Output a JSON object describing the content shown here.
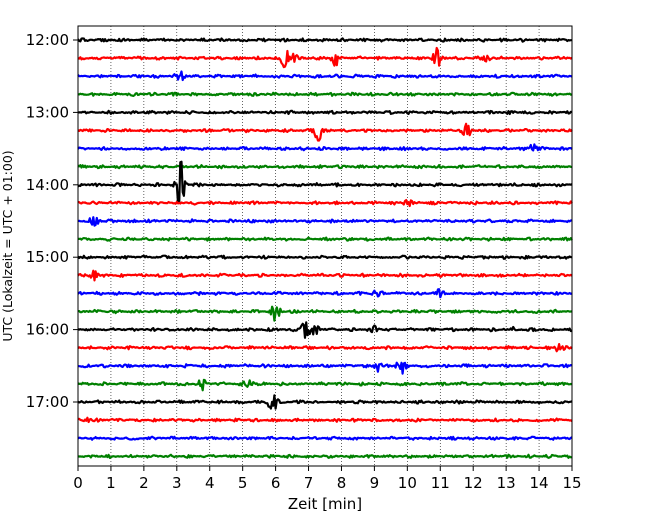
{
  "chart_data": {
    "type": "line",
    "title": "",
    "xlabel": "Zeit  [min]",
    "ylabel": "UTC (Lokalzeit = UTC + 01:00)",
    "xlim": [
      0,
      15
    ],
    "x_ticks": [
      "0",
      "1",
      "2",
      "3",
      "4",
      "5",
      "6",
      "7",
      "8",
      "9",
      "10",
      "11",
      "12",
      "13",
      "14",
      "15"
    ],
    "y_ticks": [
      "12:00",
      "13:00",
      "14:00",
      "15:00",
      "16:00",
      "17:00"
    ],
    "grid_x": true,
    "grid_y": false,
    "line_interval_min": 15,
    "first_line": "12:00",
    "colors": [
      "#000000",
      "#ff0000",
      "#0000ff",
      "#008000"
    ],
    "traces": [
      {
        "time": "12:00",
        "events": []
      },
      {
        "time": "12:15",
        "events": [
          {
            "t": 6.3,
            "amp": 1.2
          },
          {
            "t": 6.6,
            "amp": 0.6
          },
          {
            "t": 7.8,
            "amp": 1.0
          },
          {
            "t": 10.9,
            "amp": 1.1
          },
          {
            "t": 12.4,
            "amp": 0.4
          }
        ]
      },
      {
        "time": "12:30",
        "events": [
          {
            "t": 3.1,
            "amp": 0.6
          }
        ]
      },
      {
        "time": "12:45",
        "events": []
      },
      {
        "time": "13:00",
        "events": []
      },
      {
        "time": "13:15",
        "events": [
          {
            "t": 7.3,
            "amp": 1.3
          },
          {
            "t": 11.8,
            "amp": 1.1
          }
        ]
      },
      {
        "time": "13:30",
        "events": [
          {
            "t": 13.8,
            "amp": 0.6
          }
        ]
      },
      {
        "time": "13:45",
        "events": []
      },
      {
        "time": "14:00",
        "events": [
          {
            "t": 3.1,
            "amp": 3.2
          }
        ]
      },
      {
        "time": "14:15",
        "events": [
          {
            "t": 10.0,
            "amp": 0.4
          }
        ]
      },
      {
        "time": "14:30",
        "events": [
          {
            "t": 0.5,
            "amp": 0.6
          }
        ]
      },
      {
        "time": "14:45",
        "events": []
      },
      {
        "time": "15:00",
        "events": []
      },
      {
        "time": "15:15",
        "events": [
          {
            "t": 0.5,
            "amp": 0.5
          }
        ]
      },
      {
        "time": "15:30",
        "events": [
          {
            "t": 9.1,
            "amp": 0.4
          },
          {
            "t": 11.0,
            "amp": 0.4
          }
        ]
      },
      {
        "time": "15:45",
        "events": [
          {
            "t": 6.0,
            "amp": 1.0
          }
        ]
      },
      {
        "time": "16:00",
        "events": [
          {
            "t": 6.9,
            "amp": 1.0
          },
          {
            "t": 7.2,
            "amp": 0.5
          },
          {
            "t": 9.0,
            "amp": 0.3
          },
          {
            "t": 13.1,
            "amp": 0.3
          }
        ]
      },
      {
        "time": "16:15",
        "events": [
          {
            "t": 14.6,
            "amp": 0.7
          }
        ]
      },
      {
        "time": "16:30",
        "events": [
          {
            "t": 9.1,
            "amp": 0.9
          },
          {
            "t": 9.8,
            "amp": 0.9
          }
        ]
      },
      {
        "time": "16:45",
        "events": [
          {
            "t": 3.8,
            "amp": 0.8
          },
          {
            "t": 5.2,
            "amp": 0.7
          }
        ]
      },
      {
        "time": "17:00",
        "events": [
          {
            "t": 5.9,
            "amp": 1.2
          }
        ]
      },
      {
        "time": "17:15",
        "events": [
          {
            "t": 0.3,
            "amp": 0.3
          }
        ]
      },
      {
        "time": "17:30",
        "events": []
      },
      {
        "time": "17:45",
        "events": []
      }
    ]
  }
}
